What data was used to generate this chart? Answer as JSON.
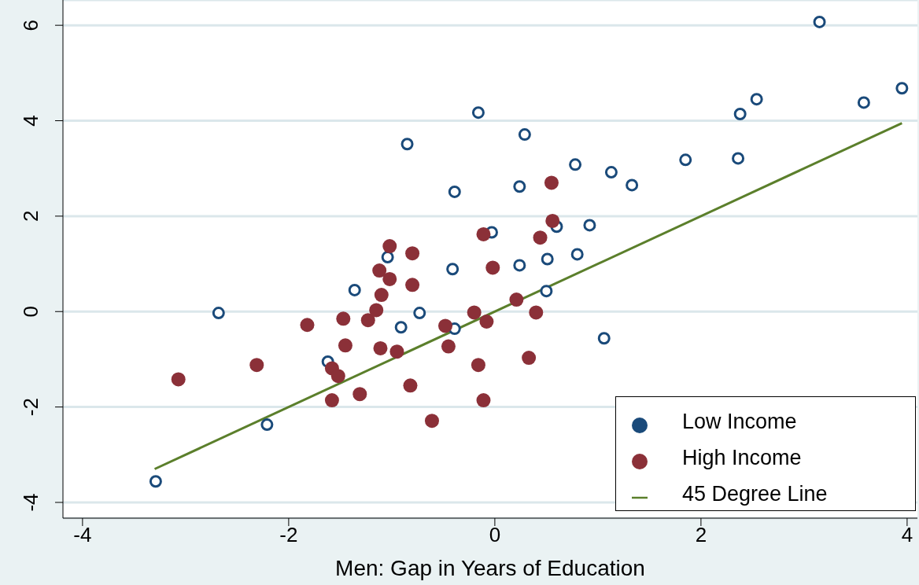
{
  "chart_data": {
    "type": "scatter",
    "xlabel": "Men: Gap in Years of Education",
    "xlim": [
      -4.19,
      4.1
    ],
    "xticks": [
      -4,
      -2,
      0,
      2,
      4
    ],
    "ylim": [
      -4.33,
      6.53
    ],
    "yticks": [
      -4,
      -2,
      0,
      2,
      4,
      6
    ],
    "grid": "y",
    "legend": "bottom right",
    "marker": "circle",
    "series": [
      {
        "name": "Low Income",
        "color": "#1a4a7a",
        "x": [
          -3.29,
          -2.68,
          -2.21,
          -1.62,
          -1.36,
          -1.04,
          -0.91,
          -0.85,
          -0.73,
          -0.41,
          -0.39,
          -0.39,
          -0.16,
          -0.03,
          0.24,
          0.24,
          0.29,
          0.51,
          0.5,
          0.6,
          0.78,
          0.8,
          0.92,
          1.06,
          1.13,
          1.33,
          1.85,
          2.36,
          2.38,
          2.54,
          3.15,
          3.58,
          3.95
        ],
        "values": [
          -3.56,
          -0.03,
          -2.37,
          -1.05,
          0.45,
          1.14,
          -0.33,
          3.51,
          -0.03,
          0.89,
          2.51,
          -0.36,
          4.17,
          1.66,
          0.97,
          2.62,
          3.71,
          1.1,
          0.43,
          1.78,
          3.08,
          1.2,
          1.81,
          -0.56,
          2.92,
          2.65,
          3.18,
          3.21,
          4.14,
          4.45,
          6.07,
          4.38,
          4.68
        ]
      },
      {
        "name": "High Income",
        "color": "#8b3038",
        "x": [
          -3.07,
          -2.31,
          -1.82,
          -1.58,
          -1.58,
          -1.52,
          -1.47,
          -1.45,
          -1.31,
          -1.23,
          -1.15,
          -1.12,
          -1.11,
          -1.1,
          -1.02,
          -1.02,
          -0.95,
          -0.82,
          -0.8,
          -0.8,
          -0.61,
          -0.48,
          -0.45,
          -0.2,
          -0.16,
          -0.11,
          -0.11,
          -0.08,
          -0.02,
          0.21,
          0.33,
          0.4,
          0.44,
          0.55,
          0.56
        ],
        "values": [
          -1.42,
          -1.12,
          -0.28,
          -1.86,
          -1.19,
          -1.35,
          -0.15,
          -0.71,
          -1.73,
          -0.18,
          0.03,
          0.86,
          -0.77,
          0.35,
          1.37,
          0.68,
          -0.84,
          -1.55,
          1.22,
          0.56,
          -2.29,
          -0.3,
          -0.73,
          -0.02,
          -1.12,
          -1.86,
          1.62,
          -0.21,
          0.92,
          0.25,
          -0.97,
          -0.02,
          1.55,
          2.7,
          1.9
        ]
      },
      {
        "name": "45 Degree Line",
        "type": "line",
        "marker": "none",
        "color": "#5b7f2b",
        "x": [
          -3.3,
          3.95
        ],
        "values": [
          -3.3,
          3.95
        ]
      }
    ]
  }
}
